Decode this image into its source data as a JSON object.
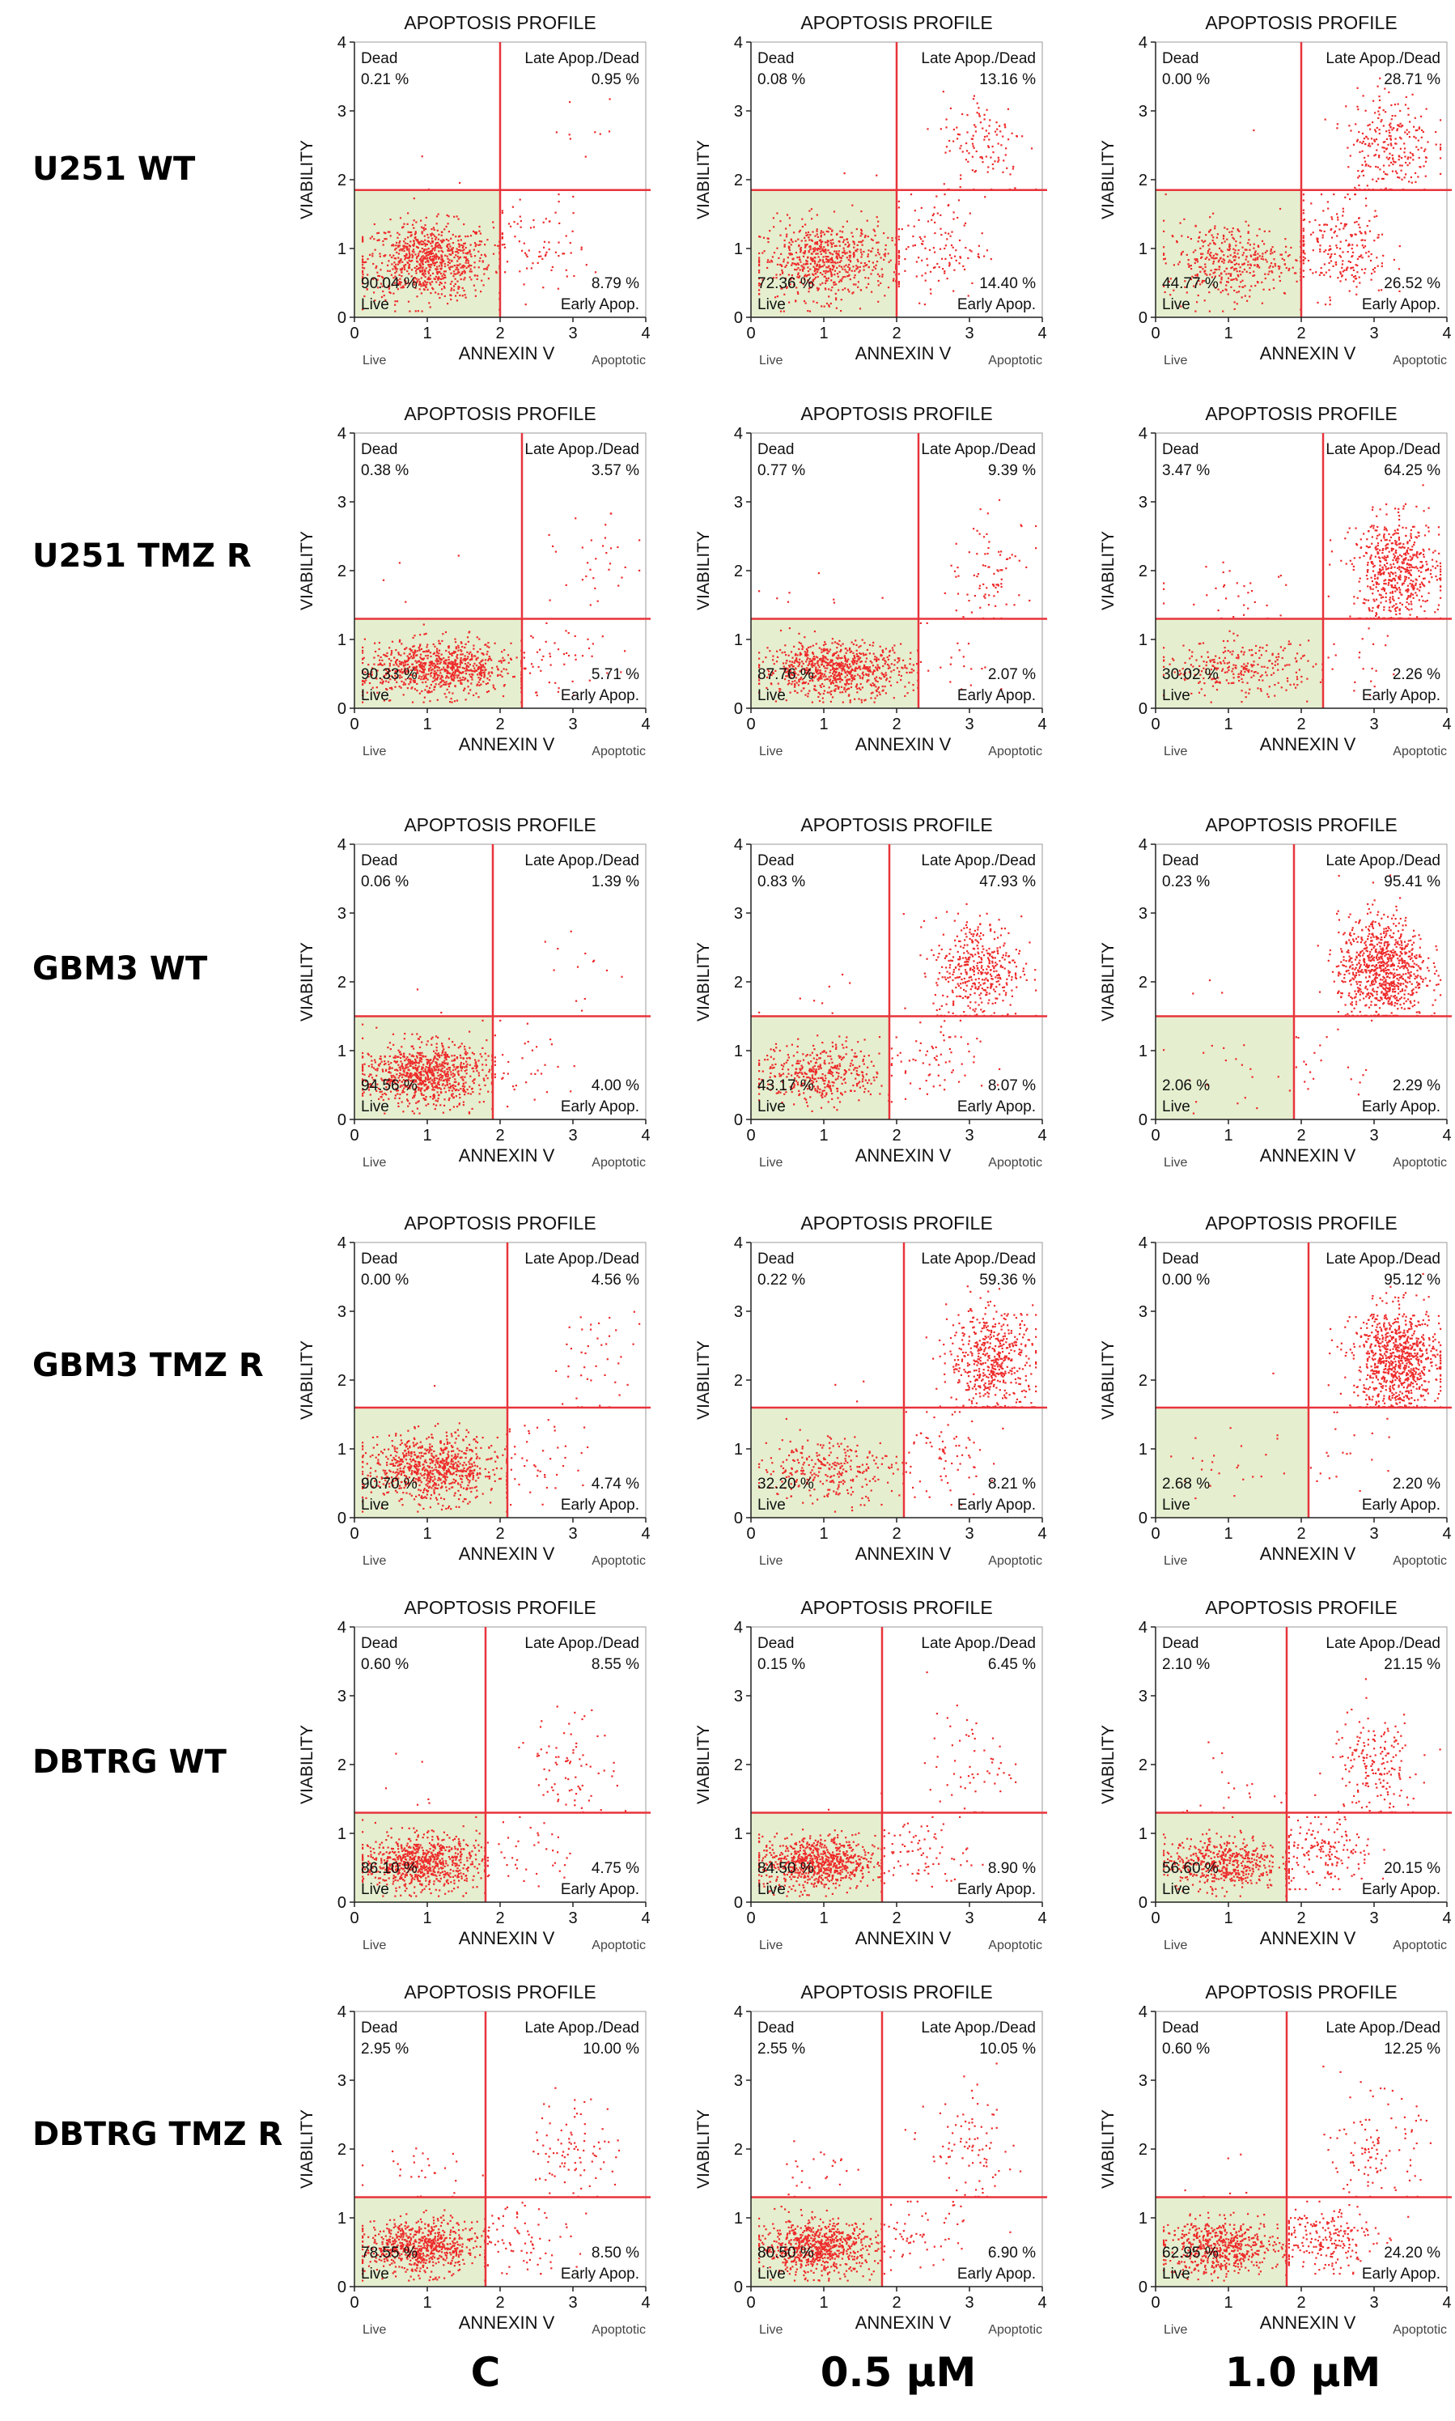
{
  "figure": {
    "row_labels": [
      "U251 WT",
      "U251 TMZ R",
      "GBM3 WT",
      "GBM3 TMZ R",
      "DBTRG WT",
      "DBTRG TMZ R"
    ],
    "column_labels": [
      "C",
      "0.5 µM",
      "1.0 µM"
    ]
  },
  "chart_data": [
    {
      "type": "scatter",
      "row": "U251 WT",
      "column": "C",
      "title": "APOPTOSIS PROFILE",
      "xlabel": "ANNEXIN V",
      "ylabel": "VIABILITY",
      "x_sublabel_left": "Live",
      "x_sublabel_right": "Apoptotic",
      "xlim": [
        0,
        4
      ],
      "ylim": [
        0,
        4
      ],
      "xticks": [
        0,
        1,
        2,
        3,
        4
      ],
      "yticks": [
        0,
        1,
        2,
        3,
        4
      ],
      "x_gate": 2.0,
      "y_gate": 1.85,
      "quadrants": {
        "dead": {
          "label": "Dead",
          "percent": "0.21 %"
        },
        "late": {
          "label": "Late Apop./Dead",
          "percent": "0.95 %"
        },
        "live": {
          "label": "Live",
          "percent": "90.04 %"
        },
        "early": {
          "label": "Early Apop.",
          "percent": "8.79 %"
        }
      }
    },
    {
      "type": "scatter",
      "row": "U251 WT",
      "column": "0.5 µM",
      "title": "APOPTOSIS PROFILE",
      "xlabel": "ANNEXIN V",
      "ylabel": "VIABILITY",
      "x_sublabel_left": "Live",
      "x_sublabel_right": "Apoptotic",
      "xlim": [
        0,
        4
      ],
      "ylim": [
        0,
        4
      ],
      "xticks": [
        0,
        1,
        2,
        3,
        4
      ],
      "yticks": [
        0,
        1,
        2,
        3,
        4
      ],
      "x_gate": 2.0,
      "y_gate": 1.85,
      "quadrants": {
        "dead": {
          "label": "Dead",
          "percent": "0.08 %"
        },
        "late": {
          "label": "Late Apop./Dead",
          "percent": "13.16 %"
        },
        "live": {
          "label": "Live",
          "percent": "72.36 %"
        },
        "early": {
          "label": "Early Apop.",
          "percent": "14.40 %"
        }
      }
    },
    {
      "type": "scatter",
      "row": "U251 WT",
      "column": "1.0 µM",
      "title": "APOPTOSIS PROFILE",
      "xlabel": "ANNEXIN V",
      "ylabel": "VIABILITY",
      "x_sublabel_left": "Live",
      "x_sublabel_right": "Apoptotic",
      "xlim": [
        0,
        4
      ],
      "ylim": [
        0,
        4
      ],
      "xticks": [
        0,
        1,
        2,
        3,
        4
      ],
      "yticks": [
        0,
        1,
        2,
        3,
        4
      ],
      "x_gate": 2.0,
      "y_gate": 1.85,
      "quadrants": {
        "dead": {
          "label": "Dead",
          "percent": "0.00 %"
        },
        "late": {
          "label": "Late Apop./Dead",
          "percent": "28.71 %"
        },
        "live": {
          "label": "Live",
          "percent": "44.77 %"
        },
        "early": {
          "label": "Early Apop.",
          "percent": "26.52 %"
        }
      }
    },
    {
      "type": "scatter",
      "row": "U251 TMZ R",
      "column": "C",
      "title": "APOPTOSIS PROFILE",
      "xlabel": "ANNEXIN V",
      "ylabel": "VIABILITY",
      "x_sublabel_left": "Live",
      "x_sublabel_right": "Apoptotic",
      "xlim": [
        0,
        4
      ],
      "ylim": [
        0,
        4
      ],
      "xticks": [
        0,
        1,
        2,
        3,
        4
      ],
      "yticks": [
        0,
        1,
        2,
        3,
        4
      ],
      "x_gate": 2.3,
      "y_gate": 1.3,
      "quadrants": {
        "dead": {
          "label": "Dead",
          "percent": "0.38 %"
        },
        "late": {
          "label": "Late Apop./Dead",
          "percent": "3.57 %"
        },
        "live": {
          "label": "Live",
          "percent": "90.33 %"
        },
        "early": {
          "label": "Early Apop.",
          "percent": "5.71 %"
        }
      }
    },
    {
      "type": "scatter",
      "row": "U251 TMZ R",
      "column": "0.5 µM",
      "title": "APOPTOSIS PROFILE",
      "xlabel": "ANNEXIN V",
      "ylabel": "VIABILITY",
      "x_sublabel_left": "Live",
      "x_sublabel_right": "Apoptotic",
      "xlim": [
        0,
        4
      ],
      "ylim": [
        0,
        4
      ],
      "xticks": [
        0,
        1,
        2,
        3,
        4
      ],
      "yticks": [
        0,
        1,
        2,
        3,
        4
      ],
      "x_gate": 2.3,
      "y_gate": 1.3,
      "quadrants": {
        "dead": {
          "label": "Dead",
          "percent": "0.77 %"
        },
        "late": {
          "label": "Late Apop./Dead",
          "percent": "9.39 %"
        },
        "live": {
          "label": "Live",
          "percent": "87.76 %"
        },
        "early": {
          "label": "Early Apop.",
          "percent": "2.07 %"
        }
      }
    },
    {
      "type": "scatter",
      "row": "U251 TMZ R",
      "column": "1.0 µM",
      "title": "APOPTOSIS PROFILE",
      "xlabel": "ANNEXIN V",
      "ylabel": "VIABILITY",
      "x_sublabel_left": "Live",
      "x_sublabel_right": "Apoptotic",
      "xlim": [
        0,
        4
      ],
      "ylim": [
        0,
        4
      ],
      "xticks": [
        0,
        1,
        2,
        3,
        4
      ],
      "yticks": [
        0,
        1,
        2,
        3,
        4
      ],
      "x_gate": 2.3,
      "y_gate": 1.3,
      "quadrants": {
        "dead": {
          "label": "Dead",
          "percent": "3.47 %"
        },
        "late": {
          "label": "Late Apop./Dead",
          "percent": "64.25 %"
        },
        "live": {
          "label": "Live",
          "percent": "30.02 %"
        },
        "early": {
          "label": "Early Apop.",
          "percent": "2.26 %"
        }
      }
    },
    {
      "type": "scatter",
      "row": "GBM3 WT",
      "column": "C",
      "title": "APOPTOSIS PROFILE",
      "xlabel": "ANNEXIN V",
      "ylabel": "VIABILITY",
      "x_sublabel_left": "Live",
      "x_sublabel_right": "Apoptotic",
      "xlim": [
        0,
        4
      ],
      "ylim": [
        0,
        4
      ],
      "xticks": [
        0,
        1,
        2,
        3,
        4
      ],
      "yticks": [
        0,
        1,
        2,
        3,
        4
      ],
      "x_gate": 1.9,
      "y_gate": 1.5,
      "quadrants": {
        "dead": {
          "label": "Dead",
          "percent": "0.06 %"
        },
        "late": {
          "label": "Late Apop./Dead",
          "percent": "1.39 %"
        },
        "live": {
          "label": "Live",
          "percent": "94.56 %"
        },
        "early": {
          "label": "Early Apop.",
          "percent": "4.00 %"
        }
      }
    },
    {
      "type": "scatter",
      "row": "GBM3 WT",
      "column": "0.5 µM",
      "title": "APOPTOSIS PROFILE",
      "xlabel": "ANNEXIN V",
      "ylabel": "VIABILITY",
      "x_sublabel_left": "Live",
      "x_sublabel_right": "Apoptotic",
      "xlim": [
        0,
        4
      ],
      "ylim": [
        0,
        4
      ],
      "xticks": [
        0,
        1,
        2,
        3,
        4
      ],
      "yticks": [
        0,
        1,
        2,
        3,
        4
      ],
      "x_gate": 1.9,
      "y_gate": 1.5,
      "quadrants": {
        "dead": {
          "label": "Dead",
          "percent": "0.83 %"
        },
        "late": {
          "label": "Late Apop./Dead",
          "percent": "47.93 %"
        },
        "live": {
          "label": "Live",
          "percent": "43.17 %"
        },
        "early": {
          "label": "Early Apop.",
          "percent": "8.07 %"
        }
      }
    },
    {
      "type": "scatter",
      "row": "GBM3 WT",
      "column": "1.0 µM",
      "title": "APOPTOSIS PROFILE",
      "xlabel": "ANNEXIN V",
      "ylabel": "VIABILITY",
      "x_sublabel_left": "Live",
      "x_sublabel_right": "Apoptotic",
      "xlim": [
        0,
        4
      ],
      "ylim": [
        0,
        4
      ],
      "xticks": [
        0,
        1,
        2,
        3,
        4
      ],
      "yticks": [
        0,
        1,
        2,
        3,
        4
      ],
      "x_gate": 1.9,
      "y_gate": 1.5,
      "quadrants": {
        "dead": {
          "label": "Dead",
          "percent": "0.23 %"
        },
        "late": {
          "label": "Late Apop./Dead",
          "percent": "95.41 %"
        },
        "live": {
          "label": "Live",
          "percent": "2.06 %"
        },
        "early": {
          "label": "Early Apop.",
          "percent": "2.29 %"
        }
      }
    },
    {
      "type": "scatter",
      "row": "GBM3 TMZ R",
      "column": "C",
      "title": "APOPTOSIS PROFILE",
      "xlabel": "ANNEXIN V",
      "ylabel": "VIABILITY",
      "x_sublabel_left": "Live",
      "x_sublabel_right": "Apoptotic",
      "xlim": [
        0,
        4
      ],
      "ylim": [
        0,
        4
      ],
      "xticks": [
        0,
        1,
        2,
        3,
        4
      ],
      "yticks": [
        0,
        1,
        2,
        3,
        4
      ],
      "x_gate": 2.1,
      "y_gate": 1.6,
      "quadrants": {
        "dead": {
          "label": "Dead",
          "percent": "0.00 %"
        },
        "late": {
          "label": "Late Apop./Dead",
          "percent": "4.56 %"
        },
        "live": {
          "label": "Live",
          "percent": "90.70 %"
        },
        "early": {
          "label": "Early Apop.",
          "percent": "4.74 %"
        }
      }
    },
    {
      "type": "scatter",
      "row": "GBM3 TMZ R",
      "column": "0.5 µM",
      "title": "APOPTOSIS PROFILE",
      "xlabel": "ANNEXIN V",
      "ylabel": "VIABILITY",
      "x_sublabel_left": "Live",
      "x_sublabel_right": "Apoptotic",
      "xlim": [
        0,
        4
      ],
      "ylim": [
        0,
        4
      ],
      "xticks": [
        0,
        1,
        2,
        3,
        4
      ],
      "yticks": [
        0,
        1,
        2,
        3,
        4
      ],
      "x_gate": 2.1,
      "y_gate": 1.6,
      "quadrants": {
        "dead": {
          "label": "Dead",
          "percent": "0.22 %"
        },
        "late": {
          "label": "Late Apop./Dead",
          "percent": "59.36 %"
        },
        "live": {
          "label": "Live",
          "percent": "32.20 %"
        },
        "early": {
          "label": "Early Apop.",
          "percent": "8.21 %"
        }
      }
    },
    {
      "type": "scatter",
      "row": "GBM3 TMZ R",
      "column": "1.0 µM",
      "title": "APOPTOSIS PROFILE",
      "xlabel": "ANNEXIN V",
      "ylabel": "VIABILITY",
      "x_sublabel_left": "Live",
      "x_sublabel_right": "Apoptotic",
      "xlim": [
        0,
        4
      ],
      "ylim": [
        0,
        4
      ],
      "xticks": [
        0,
        1,
        2,
        3,
        4
      ],
      "yticks": [
        0,
        1,
        2,
        3,
        4
      ],
      "x_gate": 2.1,
      "y_gate": 1.6,
      "quadrants": {
        "dead": {
          "label": "Dead",
          "percent": "0.00 %"
        },
        "late": {
          "label": "Late Apop./Dead",
          "percent": "95.12 %"
        },
        "live": {
          "label": "Live",
          "percent": "2.68 %"
        },
        "early": {
          "label": "Early Apop.",
          "percent": "2.20 %"
        }
      }
    },
    {
      "type": "scatter",
      "row": "DBTRG WT",
      "column": "C",
      "title": "APOPTOSIS PROFILE",
      "xlabel": "ANNEXIN V",
      "ylabel": "VIABILITY",
      "x_sublabel_left": "Live",
      "x_sublabel_right": "Apoptotic",
      "xlim": [
        0,
        4
      ],
      "ylim": [
        0,
        4
      ],
      "xticks": [
        0,
        1,
        2,
        3,
        4
      ],
      "yticks": [
        0,
        1,
        2,
        3,
        4
      ],
      "x_gate": 1.8,
      "y_gate": 1.3,
      "quadrants": {
        "dead": {
          "label": "Dead",
          "percent": "0.60 %"
        },
        "late": {
          "label": "Late Apop./Dead",
          "percent": "8.55 %"
        },
        "live": {
          "label": "Live",
          "percent": "86.10 %"
        },
        "early": {
          "label": "Early Apop.",
          "percent": "4.75 %"
        }
      }
    },
    {
      "type": "scatter",
      "row": "DBTRG WT",
      "column": "0.5 µM",
      "title": "APOPTOSIS PROFILE",
      "xlabel": "ANNEXIN V",
      "ylabel": "VIABILITY",
      "x_sublabel_left": "Live",
      "x_sublabel_right": "Apoptotic",
      "xlim": [
        0,
        4
      ],
      "ylim": [
        0,
        4
      ],
      "xticks": [
        0,
        1,
        2,
        3,
        4
      ],
      "yticks": [
        0,
        1,
        2,
        3,
        4
      ],
      "x_gate": 1.8,
      "y_gate": 1.3,
      "quadrants": {
        "dead": {
          "label": "Dead",
          "percent": "0.15 %"
        },
        "late": {
          "label": "Late Apop./Dead",
          "percent": "6.45 %"
        },
        "live": {
          "label": "Live",
          "percent": "84.50 %"
        },
        "early": {
          "label": "Early Apop.",
          "percent": "8.90 %"
        }
      }
    },
    {
      "type": "scatter",
      "row": "DBTRG WT",
      "column": "1.0 µM",
      "title": "APOPTOSIS PROFILE",
      "xlabel": "ANNEXIN V",
      "ylabel": "VIABILITY",
      "x_sublabel_left": "Live",
      "x_sublabel_right": "Apoptotic",
      "xlim": [
        0,
        4
      ],
      "ylim": [
        0,
        4
      ],
      "xticks": [
        0,
        1,
        2,
        3,
        4
      ],
      "yticks": [
        0,
        1,
        2,
        3,
        4
      ],
      "x_gate": 1.8,
      "y_gate": 1.3,
      "quadrants": {
        "dead": {
          "label": "Dead",
          "percent": "2.10 %"
        },
        "late": {
          "label": "Late Apop./Dead",
          "percent": "21.15 %"
        },
        "live": {
          "label": "Live",
          "percent": "56.60 %"
        },
        "early": {
          "label": "Early Apop.",
          "percent": "20.15 %"
        }
      }
    },
    {
      "type": "scatter",
      "row": "DBTRG TMZ R",
      "column": "C",
      "title": "APOPTOSIS PROFILE",
      "xlabel": "ANNEXIN V",
      "ylabel": "VIABILITY",
      "x_sublabel_left": "Live",
      "x_sublabel_right": "Apoptotic",
      "xlim": [
        0,
        4
      ],
      "ylim": [
        0,
        4
      ],
      "xticks": [
        0,
        1,
        2,
        3,
        4
      ],
      "yticks": [
        0,
        1,
        2,
        3,
        4
      ],
      "x_gate": 1.8,
      "y_gate": 1.3,
      "quadrants": {
        "dead": {
          "label": "Dead",
          "percent": "2.95 %"
        },
        "late": {
          "label": "Late Apop./Dead",
          "percent": "10.00 %"
        },
        "live": {
          "label": "Live",
          "percent": "78.55 %"
        },
        "early": {
          "label": "Early Apop.",
          "percent": "8.50 %"
        }
      }
    },
    {
      "type": "scatter",
      "row": "DBTRG TMZ R",
      "column": "0.5 µM",
      "title": "APOPTOSIS PROFILE",
      "xlabel": "ANNEXIN V",
      "ylabel": "VIABILITY",
      "x_sublabel_left": "Live",
      "x_sublabel_right": "Apoptotic",
      "xlim": [
        0,
        4
      ],
      "ylim": [
        0,
        4
      ],
      "xticks": [
        0,
        1,
        2,
        3,
        4
      ],
      "yticks": [
        0,
        1,
        2,
        3,
        4
      ],
      "x_gate": 1.8,
      "y_gate": 1.3,
      "quadrants": {
        "dead": {
          "label": "Dead",
          "percent": "2.55 %"
        },
        "late": {
          "label": "Late Apop./Dead",
          "percent": "10.05 %"
        },
        "live": {
          "label": "Live",
          "percent": "80.50 %"
        },
        "early": {
          "label": "Early Apop.",
          "percent": "6.90 %"
        }
      }
    },
    {
      "type": "scatter",
      "row": "DBTRG TMZ R",
      "column": "1.0 µM",
      "title": "APOPTOSIS PROFILE",
      "xlabel": "ANNEXIN V",
      "ylabel": "VIABILITY",
      "x_sublabel_left": "Live",
      "x_sublabel_right": "Apoptotic",
      "xlim": [
        0,
        4
      ],
      "ylim": [
        0,
        4
      ],
      "xticks": [
        0,
        1,
        2,
        3,
        4
      ],
      "yticks": [
        0,
        1,
        2,
        3,
        4
      ],
      "x_gate": 1.8,
      "y_gate": 1.3,
      "quadrants": {
        "dead": {
          "label": "Dead",
          "percent": "0.60 %"
        },
        "late": {
          "label": "Late Apop./Dead",
          "percent": "12.25 %"
        },
        "live": {
          "label": "Live",
          "percent": "62.95 %"
        },
        "early": {
          "label": "Early Apop.",
          "percent": "24.20 %"
        }
      }
    }
  ],
  "colors": {
    "gate": "#e8343b",
    "dots": "#ee2a2a",
    "live_fill": "#e5efcf",
    "axis": "#222222"
  }
}
